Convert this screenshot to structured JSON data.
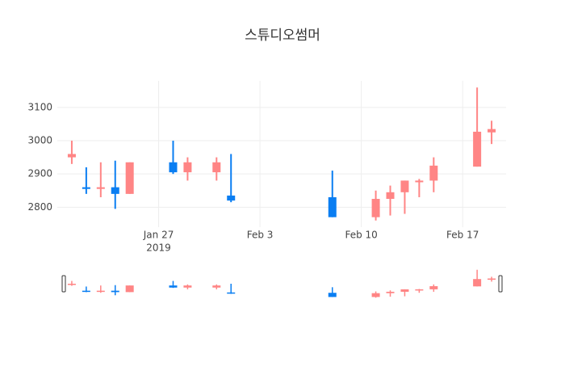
{
  "chart_data": {
    "type": "candlestick",
    "title": "스튜디오썸머",
    "x": [
      "2019-01-21",
      "2019-01-22",
      "2019-01-23",
      "2019-01-24",
      "2019-01-25",
      "2019-01-28",
      "2019-01-29",
      "2019-01-31",
      "2019-02-01",
      "2019-02-08",
      "2019-02-11",
      "2019-02-12",
      "2019-02-13",
      "2019-02-14",
      "2019-02-15",
      "2019-02-18",
      "2019-02-19"
    ],
    "open": [
      2950,
      2860,
      2855,
      2860,
      2840,
      2935,
      2905,
      2905,
      2835,
      2830,
      2770,
      2825,
      2845,
      2875,
      2880,
      2922,
      3025
    ],
    "high": [
      3000,
      2920,
      2935,
      2940,
      2935,
      3000,
      2950,
      2950,
      2960,
      2910,
      2850,
      2865,
      2880,
      2885,
      2950,
      3160,
      3060
    ],
    "low": [
      2930,
      2840,
      2830,
      2795,
      2840,
      2900,
      2880,
      2880,
      2815,
      2770,
      2760,
      2775,
      2780,
      2830,
      2845,
      2922,
      2990
    ],
    "close": [
      2960,
      2855,
      2860,
      2840,
      2935,
      2905,
      2935,
      2935,
      2820,
      2770,
      2825,
      2845,
      2880,
      2880,
      2925,
      3027,
      3035
    ],
    "increasing_color": "#ff8585",
    "decreasing_color": "#0a7ef2",
    "xlim": [
      "2019-01-20",
      "2019-02-20"
    ],
    "xticks": [
      {
        "value": "2019-01-27",
        "label": "Jan 27"
      },
      {
        "value": "2019-02-03",
        "label": "Feb 3"
      },
      {
        "value": "2019-02-10",
        "label": "Feb 10"
      },
      {
        "value": "2019-02-17",
        "label": "Feb 17"
      }
    ],
    "x_year_label": "2019",
    "ylim": [
      2740,
      3180
    ],
    "yticks": [
      2800,
      2900,
      3000,
      3100
    ],
    "grid": true,
    "rangeslider": true
  }
}
